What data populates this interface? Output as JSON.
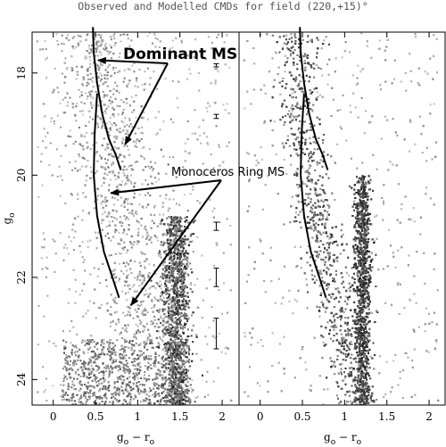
{
  "chart_data": {
    "type": "scatter",
    "title": "Observed and Modelled CMDs for field  (220,+15)°",
    "panels": [
      {
        "name": "observed",
        "xlim": [
          -0.25,
          2.2
        ],
        "ylim": [
          24.5,
          17.2
        ],
        "xticks": [
          0,
          0.5,
          1,
          1.5,
          2
        ],
        "yticks": [
          18,
          20,
          22,
          24
        ],
        "xlabel": "g",
        "xlabel_sub": "o",
        "xlabel_sep": " − ",
        "xlabel2": "r",
        "xlabel2_sub": "o",
        "ylabel": "g",
        "ylabel_sub": "o",
        "tracks": [
          {
            "name": "Dominant MS",
            "x": [
              0.47,
              0.48,
              0.52,
              0.58,
              0.66,
              0.74,
              0.8
            ],
            "y": [
              17.1,
              17.6,
              18.2,
              18.8,
              19.3,
              19.6,
              19.9
            ]
          },
          {
            "name": "Monoceros Ring MS",
            "x": [
              0.52,
              0.49,
              0.48,
              0.52,
              0.6,
              0.7,
              0.78
            ],
            "y": [
              18.4,
              19.2,
              20.0,
              20.8,
              21.5,
              22.0,
              22.4
            ]
          }
        ],
        "error_bars": [
          {
            "x": 1.93,
            "y": 17.85,
            "err": 0.03
          },
          {
            "x": 1.93,
            "y": 18.85,
            "err": 0.04
          },
          {
            "x": 1.93,
            "y": 21.0,
            "err": 0.08
          },
          {
            "x": 1.93,
            "y": 22.0,
            "err": 0.18
          },
          {
            "x": 1.93,
            "y": 23.1,
            "err": 0.3
          }
        ]
      },
      {
        "name": "modelled",
        "xlim": [
          -0.25,
          2.2
        ],
        "ylim": [
          24.5,
          17.2
        ],
        "xticks": [
          0,
          0.5,
          1,
          1.5,
          2
        ],
        "yticks": [
          18,
          20,
          22,
          24
        ],
        "xlabel": "g",
        "xlabel_sub": "o",
        "xlabel_sep": " − ",
        "xlabel2": "r",
        "xlabel2_sub": "o",
        "tracks": [
          {
            "name": "Dominant MS",
            "x": [
              0.47,
              0.48,
              0.52,
              0.58,
              0.66,
              0.74,
              0.8
            ],
            "y": [
              17.1,
              17.6,
              18.2,
              18.8,
              19.3,
              19.6,
              19.9
            ]
          },
          {
            "name": "Monoceros Ring MS",
            "x": [
              0.52,
              0.49,
              0.48,
              0.52,
              0.6,
              0.7,
              0.78
            ],
            "y": [
              18.4,
              19.2,
              20.0,
              20.8,
              21.5,
              22.0,
              22.4
            ]
          }
        ]
      }
    ],
    "annotations": [
      {
        "text": "Dominant MS",
        "style": "big",
        "x": 0.9,
        "y": 17.4,
        "arrows_to": [
          [
            0.53,
            17.75
          ],
          [
            0.85,
            19.4
          ]
        ]
      },
      {
        "text": "Monoceros Ring MS",
        "style": "med",
        "x": 1.4,
        "y": 19.9,
        "arrows_to": [
          [
            0.68,
            20.35
          ],
          [
            0.92,
            22.55
          ]
        ]
      }
    ]
  }
}
